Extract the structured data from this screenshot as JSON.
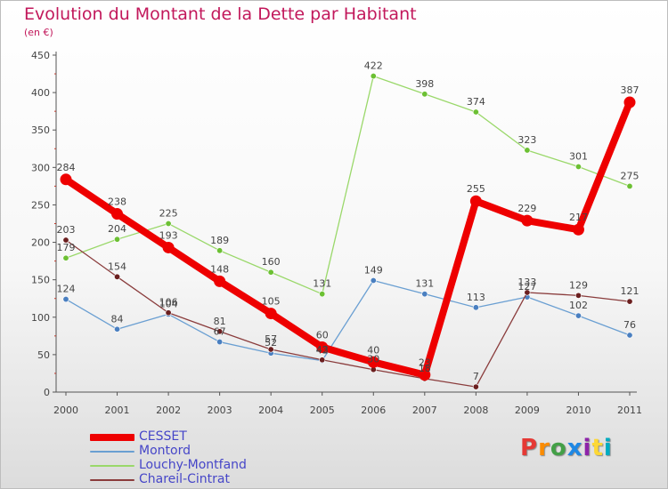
{
  "title": "Evolution du Montant de la Dette par Habitant",
  "unit": "(en €)",
  "logo": {
    "text": "Proxiti",
    "letters": [
      {
        "ch": "P",
        "color": "#e53935"
      },
      {
        "ch": "r",
        "color": "#fb8c00"
      },
      {
        "ch": "o",
        "color": "#43a047"
      },
      {
        "ch": "x",
        "color": "#1e88e5"
      },
      {
        "ch": "i",
        "color": "#8e24aa"
      },
      {
        "ch": "t",
        "color": "#fdd835"
      },
      {
        "ch": "i",
        "color": "#00acc1"
      }
    ]
  },
  "chart_data": {
    "type": "line",
    "title": "Evolution du Montant de la Dette par Habitant",
    "ylabel": "(en €)",
    "xlabel": "",
    "x": [
      "2000",
      "2001",
      "2002",
      "2003",
      "2004",
      "2005",
      "2006",
      "2007",
      "2008",
      "2009",
      "2010",
      "2011"
    ],
    "ylim": [
      0,
      450
    ],
    "yticks": [
      0,
      50,
      100,
      150,
      200,
      250,
      300,
      350,
      400,
      450
    ],
    "grid": false,
    "legend": "bottom-left",
    "series": [
      {
        "name": "CESSET",
        "color": "#ee0000",
        "marker": "#ee0000",
        "emphasis": true,
        "values": [
          284,
          238,
          193,
          148,
          105,
          60,
          40,
          23,
          255,
          229,
          217,
          387
        ]
      },
      {
        "name": "Montord",
        "color": "#6a9fd2",
        "marker": "#4a7fc0",
        "values": [
          124,
          84,
          104,
          67,
          52,
          42,
          149,
          131,
          113,
          127,
          102,
          76
        ]
      },
      {
        "name": "Louchy-Montfand",
        "color": "#9ad86a",
        "marker": "#6cc033",
        "values": [
          179,
          204,
          225,
          189,
          160,
          131,
          422,
          398,
          374,
          323,
          301,
          275
        ]
      },
      {
        "name": "Chareil-Cintrat",
        "color": "#8a3c3c",
        "marker": "#6b1f1f",
        "values": [
          203,
          154,
          106,
          81,
          57,
          43,
          30,
          18,
          7,
          133,
          129,
          121
        ]
      }
    ]
  }
}
